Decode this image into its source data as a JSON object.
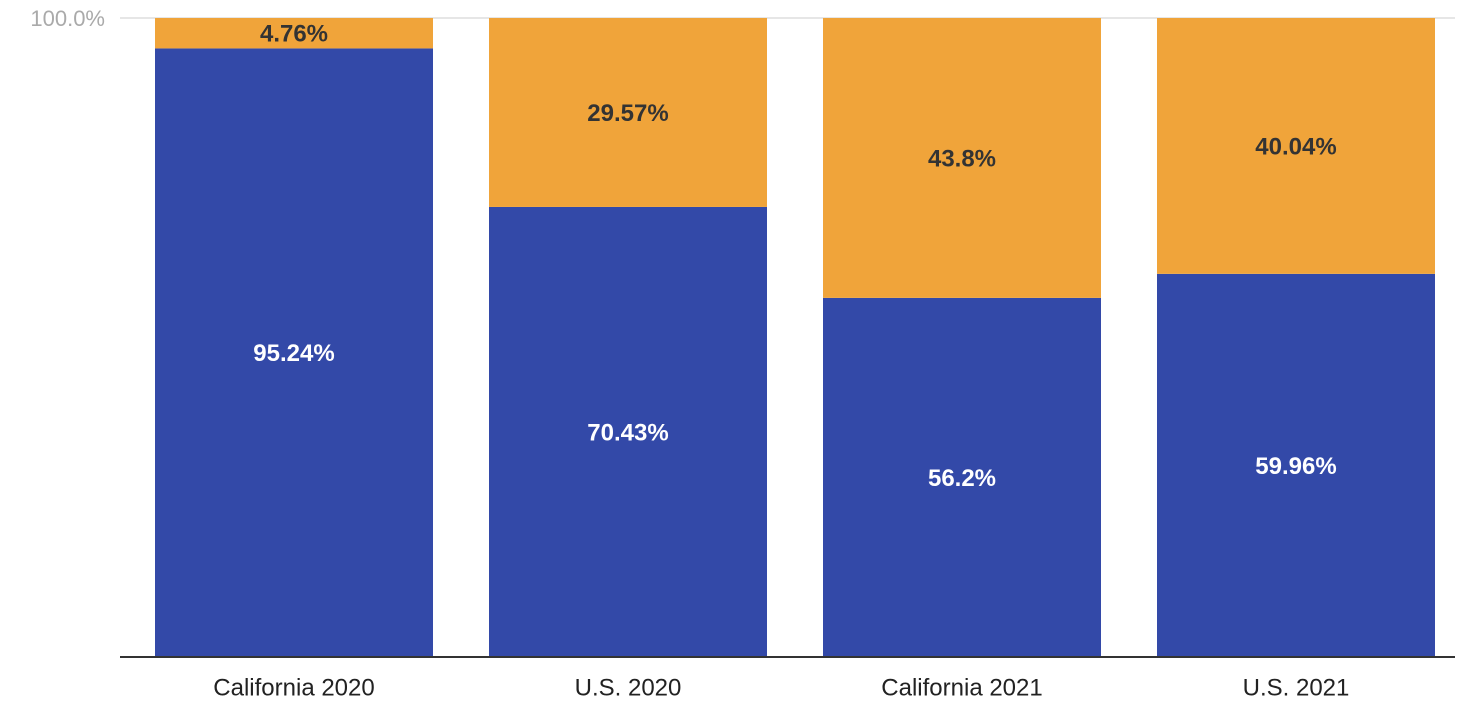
{
  "chart_data": {
    "type": "stacked_bar",
    "categories": [
      "California 2020",
      "U.S. 2020",
      "California 2021",
      "U.S. 2021"
    ],
    "series": [
      {
        "color": "#3349a8",
        "values": [
          95.24,
          70.43,
          56.2,
          59.96
        ],
        "value_labels": [
          "95.24%",
          "70.43%",
          "56.2%",
          "59.96%"
        ]
      },
      {
        "color": "#f0a43a",
        "values": [
          4.76,
          29.57,
          43.8,
          40.04
        ],
        "value_labels": [
          "4.76%",
          "29.57%",
          "43.8%",
          "40.04%"
        ]
      }
    ],
    "ylim": [
      0,
      100
    ],
    "yticks": [
      {
        "value": 100,
        "label": "100.0%"
      }
    ],
    "grid": true
  }
}
